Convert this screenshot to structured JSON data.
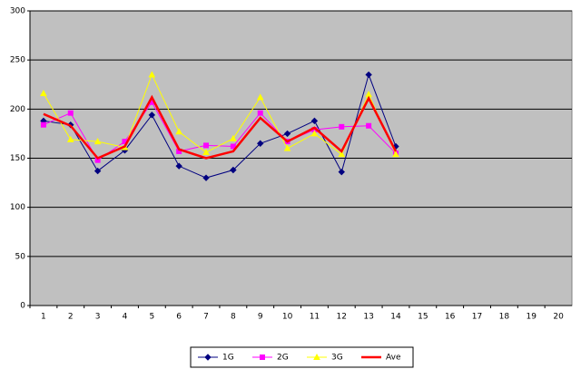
{
  "chart_data": {
    "type": "line",
    "categories": [
      1,
      2,
      3,
      4,
      5,
      6,
      7,
      8,
      9,
      10,
      11,
      12,
      13,
      14,
      15,
      16,
      17,
      18,
      19,
      20
    ],
    "series": [
      {
        "name": "1G",
        "color": "#000080",
        "marker": "diamond",
        "values": [
          188,
          184,
          137,
          158,
          194,
          142,
          130,
          138,
          165,
          175,
          188,
          136,
          235,
          162,
          null,
          null,
          null,
          null,
          null,
          null
        ]
      },
      {
        "name": "2G",
        "color": "#ff00ff",
        "marker": "square",
        "values": [
          184,
          196,
          148,
          167,
          207,
          157,
          163,
          162,
          196,
          167,
          179,
          182,
          183,
          155,
          null,
          null,
          null,
          null,
          null,
          null
        ]
      },
      {
        "name": "3G",
        "color": "#ffff00",
        "marker": "triangle",
        "values": [
          216,
          169,
          167,
          161,
          235,
          177,
          156,
          170,
          212,
          160,
          175,
          154,
          215,
          154,
          null,
          null,
          null,
          null,
          null,
          null
        ]
      },
      {
        "name": "Ave",
        "color": "#ff0000",
        "marker": "none",
        "values": [
          195,
          183,
          150,
          162,
          212,
          159,
          150,
          157,
          191,
          167,
          181,
          157,
          211,
          157,
          null,
          null,
          null,
          null,
          null,
          null
        ]
      }
    ],
    "ylim": [
      0,
      300
    ],
    "yticks": [
      0,
      50,
      100,
      150,
      200,
      250,
      300
    ],
    "grid": true,
    "legend": "bottom"
  }
}
